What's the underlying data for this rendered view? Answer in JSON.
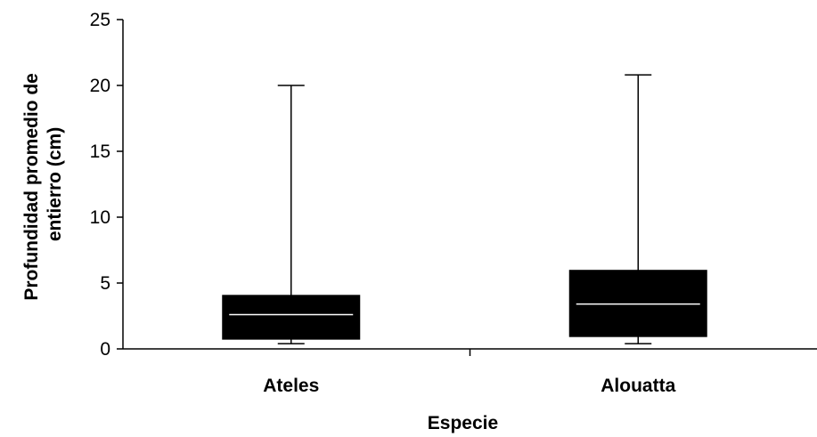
{
  "chart_data": {
    "type": "box",
    "xlabel": "Especie",
    "ylabel": [
      "Profundidad promedio de",
      "entierro (cm)"
    ],
    "ylim": [
      0,
      25
    ],
    "yticks": [
      0,
      5,
      10,
      15,
      20,
      25
    ],
    "grid": false,
    "categories": [
      "Ateles",
      "Alouatta"
    ],
    "boxes": [
      {
        "category": "Ateles",
        "min": 0.4,
        "q1": 0.7,
        "median": 2.6,
        "q3": 4.1,
        "max": 20.0
      },
      {
        "category": "Alouatta",
        "min": 0.4,
        "q1": 0.9,
        "median": 3.4,
        "q3": 6.0,
        "max": 20.8
      }
    ],
    "colors": {
      "box": "#000000",
      "median": "#ffffff",
      "axis": "#000000"
    }
  }
}
